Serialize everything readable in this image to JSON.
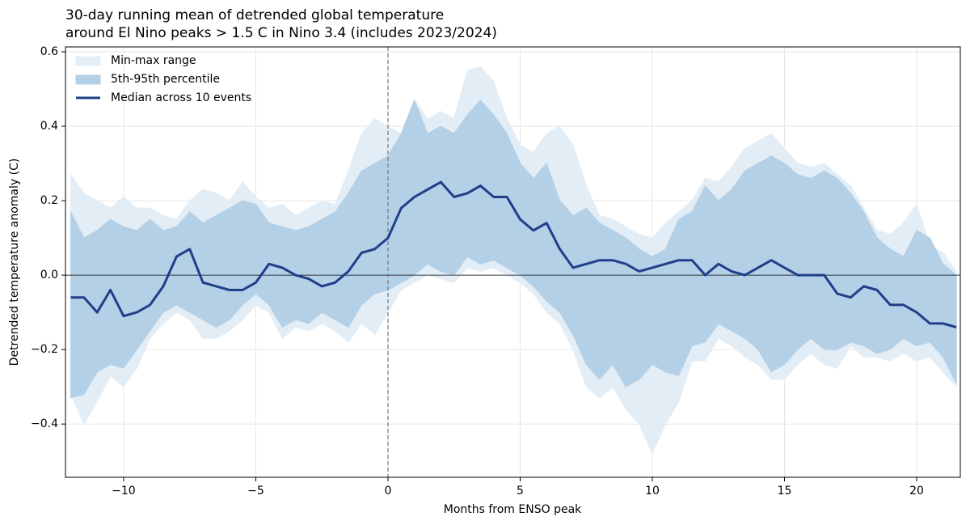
{
  "chart_data": {
    "type": "line",
    "title": [
      "30-day running mean of detrended global temperature",
      "around El Nino peaks > 1.5 C in Nino 3.4 (includes 2023/2024)"
    ],
    "x_label": "Months from ENSO peak",
    "y_label": "Detrended temperature anomaly (C)",
    "xlim": [
      -12.2,
      21.65
    ],
    "ylim": [
      -0.543,
      0.613
    ],
    "xticks": [
      {
        "value": -10,
        "label": "−10"
      },
      {
        "value": -5,
        "label": "−5"
      },
      0,
      5,
      10,
      15,
      20
    ],
    "yticks": [
      {
        "value": -0.4,
        "label": "−0.4"
      },
      {
        "value": -0.2,
        "label": "−0.2"
      },
      {
        "value": 0,
        "label": "0.0"
      },
      0.2,
      0.4,
      0.6
    ],
    "grid": true,
    "vline": 0,
    "hline": 0,
    "legend": "upper left",
    "x": [
      -12,
      -11.5,
      -11,
      -10.5,
      -10,
      -9.5,
      -9,
      -8.5,
      -8,
      -7.5,
      -7,
      -6.5,
      -6,
      -5.5,
      -5,
      -4.5,
      -4,
      -3.5,
      -3,
      -2.5,
      -2,
      -1.5,
      -1,
      -0.5,
      0,
      0.5,
      1,
      1.5,
      2,
      2.5,
      3,
      3.5,
      4,
      4.5,
      5,
      5.5,
      6,
      6.5,
      7,
      7.5,
      8,
      8.5,
      9,
      9.5,
      10,
      10.5,
      11,
      11.5,
      12,
      12.5,
      13,
      13.5,
      14,
      14.5,
      15,
      15.5,
      16,
      16.5,
      17,
      17.5,
      18,
      18.5,
      19,
      19.5,
      20,
      20.5,
      21,
      21.5
    ],
    "series": [
      {
        "name": "Min-max range",
        "color": "#e3edf6",
        "lower": [
          -0.32,
          -0.4,
          -0.34,
          -0.27,
          -0.3,
          -0.25,
          -0.17,
          -0.13,
          -0.1,
          -0.12,
          -0.17,
          -0.17,
          -0.15,
          -0.12,
          -0.08,
          -0.1,
          -0.17,
          -0.14,
          -0.15,
          -0.13,
          -0.15,
          -0.18,
          -0.13,
          -0.16,
          -0.1,
          -0.04,
          -0.02,
          0.0,
          -0.01,
          -0.02,
          0.02,
          0.01,
          0.02,
          0.0,
          -0.02,
          -0.05,
          -0.1,
          -0.13,
          -0.2,
          -0.3,
          -0.33,
          -0.3,
          -0.36,
          -0.4,
          -0.48,
          -0.4,
          -0.34,
          -0.23,
          -0.23,
          -0.17,
          -0.19,
          -0.22,
          -0.24,
          -0.28,
          -0.28,
          -0.24,
          -0.21,
          -0.24,
          -0.25,
          -0.19,
          -0.22,
          -0.22,
          -0.23,
          -0.21,
          -0.23,
          -0.22,
          -0.26,
          -0.3
        ],
        "upper": [
          0.27,
          0.22,
          0.2,
          0.18,
          0.21,
          0.18,
          0.18,
          0.16,
          0.15,
          0.2,
          0.23,
          0.22,
          0.2,
          0.25,
          0.21,
          0.18,
          0.19,
          0.16,
          0.18,
          0.2,
          0.19,
          0.28,
          0.38,
          0.42,
          0.4,
          0.38,
          0.47,
          0.42,
          0.44,
          0.42,
          0.55,
          0.56,
          0.52,
          0.42,
          0.35,
          0.33,
          0.38,
          0.4,
          0.35,
          0.24,
          0.16,
          0.15,
          0.13,
          0.11,
          0.1,
          0.14,
          0.17,
          0.2,
          0.26,
          0.25,
          0.29,
          0.34,
          0.36,
          0.38,
          0.34,
          0.3,
          0.29,
          0.3,
          0.27,
          0.24,
          0.18,
          0.12,
          0.11,
          0.14,
          0.19,
          0.08,
          0.06,
          0.01
        ]
      },
      {
        "name": "5th-95th percentile",
        "color": "#b4d0e6",
        "lower": [
          -0.33,
          -0.32,
          -0.26,
          -0.24,
          -0.25,
          -0.2,
          -0.15,
          -0.1,
          -0.08,
          -0.1,
          -0.12,
          -0.14,
          -0.12,
          -0.08,
          -0.05,
          -0.08,
          -0.14,
          -0.12,
          -0.13,
          -0.1,
          -0.12,
          -0.14,
          -0.08,
          -0.05,
          -0.04,
          -0.02,
          0.0,
          0.03,
          0.01,
          0.0,
          0.05,
          0.03,
          0.04,
          0.02,
          0.0,
          -0.03,
          -0.07,
          -0.1,
          -0.16,
          -0.24,
          -0.28,
          -0.24,
          -0.3,
          -0.28,
          -0.24,
          -0.26,
          -0.27,
          -0.19,
          -0.18,
          -0.13,
          -0.15,
          -0.17,
          -0.2,
          -0.26,
          -0.24,
          -0.2,
          -0.17,
          -0.2,
          -0.2,
          -0.18,
          -0.19,
          -0.21,
          -0.2,
          -0.17,
          -0.19,
          -0.18,
          -0.22,
          -0.29
        ],
        "upper": [
          0.17,
          0.1,
          0.12,
          0.15,
          0.13,
          0.12,
          0.15,
          0.12,
          0.13,
          0.17,
          0.14,
          0.16,
          0.18,
          0.2,
          0.19,
          0.14,
          0.13,
          0.12,
          0.13,
          0.15,
          0.17,
          0.22,
          0.28,
          0.3,
          0.32,
          0.38,
          0.47,
          0.38,
          0.4,
          0.38,
          0.43,
          0.47,
          0.43,
          0.38,
          0.3,
          0.26,
          0.3,
          0.2,
          0.16,
          0.18,
          0.14,
          0.12,
          0.1,
          0.07,
          0.05,
          0.07,
          0.15,
          0.17,
          0.24,
          0.2,
          0.23,
          0.28,
          0.3,
          0.32,
          0.3,
          0.27,
          0.26,
          0.28,
          0.26,
          0.22,
          0.17,
          0.1,
          0.07,
          0.05,
          0.12,
          0.1,
          0.03,
          0.0
        ]
      },
      {
        "name": "Median across 10 events",
        "color": "#1f3f8a",
        "values": [
          -0.06,
          -0.06,
          -0.1,
          -0.04,
          -0.11,
          -0.1,
          -0.08,
          -0.03,
          0.05,
          0.07,
          -0.02,
          -0.03,
          -0.04,
          -0.04,
          -0.02,
          0.03,
          0.02,
          0.0,
          -0.01,
          -0.03,
          -0.02,
          0.01,
          0.06,
          0.07,
          0.1,
          0.18,
          0.21,
          0.23,
          0.25,
          0.21,
          0.22,
          0.24,
          0.21,
          0.21,
          0.15,
          0.12,
          0.14,
          0.07,
          0.02,
          0.03,
          0.04,
          0.04,
          0.03,
          0.01,
          0.02,
          0.03,
          0.04,
          0.04,
          0.0,
          0.03,
          0.01,
          0.0,
          0.02,
          0.04,
          0.02,
          0.0,
          0.0,
          0.0,
          -0.05,
          -0.06,
          -0.03,
          -0.04,
          -0.08,
          -0.08,
          -0.1,
          -0.13,
          -0.13,
          -0.14
        ]
      }
    ]
  }
}
